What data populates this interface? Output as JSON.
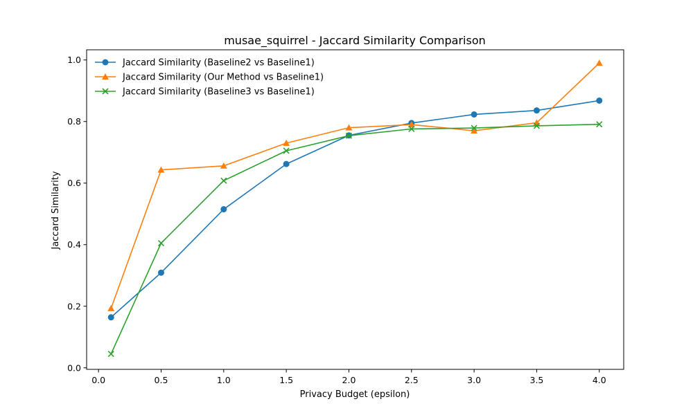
{
  "chart_data": {
    "type": "line",
    "title": "musae_squirrel - Jaccard Similarity Comparison",
    "xlabel": "Privacy Budget (epsilon)",
    "ylabel": "Jaccard Similarity",
    "x": [
      0.1,
      0.5,
      1.0,
      1.5,
      2.0,
      2.5,
      3.0,
      3.5,
      4.0
    ],
    "xlim": [
      -0.095,
      4.195
    ],
    "ylim": [
      -0.005,
      1.033
    ],
    "xticks": [
      0.0,
      0.5,
      1.0,
      1.5,
      2.0,
      2.5,
      3.0,
      3.5,
      4.0
    ],
    "xtick_labels": [
      "0.0",
      "0.5",
      "1.0",
      "1.5",
      "2.0",
      "2.5",
      "3.0",
      "3.5",
      "4.0"
    ],
    "yticks": [
      0.0,
      0.2,
      0.4,
      0.6,
      0.8,
      1.0
    ],
    "ytick_labels": [
      "0.0",
      "0.2",
      "0.4",
      "0.6",
      "0.8",
      "1.0"
    ],
    "grid": false,
    "legend_position": "top-left",
    "series": [
      {
        "name": "Jaccard Similarity (Baseline2 vs Baseline1)",
        "color": "#1f77b4",
        "marker": "circle",
        "values": [
          0.164,
          0.309,
          0.515,
          0.662,
          0.755,
          0.795,
          0.823,
          0.836,
          0.868
        ]
      },
      {
        "name": "Jaccard Similarity (Our Method vs Baseline1)",
        "color": "#ff7f0e",
        "marker": "triangle",
        "values": [
          0.193,
          0.643,
          0.656,
          0.73,
          0.78,
          0.79,
          0.77,
          0.796,
          0.99
        ]
      },
      {
        "name": "Jaccard Similarity (Baseline3 vs Baseline1)",
        "color": "#2ca02c",
        "marker": "x",
        "values": [
          0.045,
          0.405,
          0.608,
          0.705,
          0.754,
          0.776,
          0.779,
          0.786,
          0.791
        ]
      }
    ]
  }
}
